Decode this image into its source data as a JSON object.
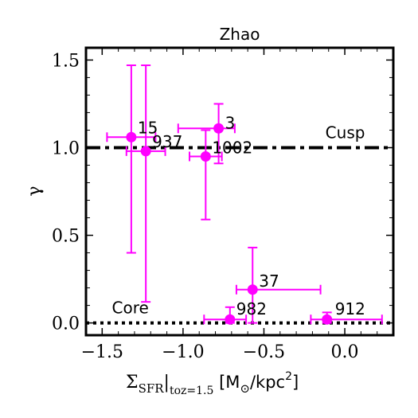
{
  "chart_data": {
    "type": "scatter",
    "title": "Zhao",
    "xlabel_main": "Σ",
    "xlabel_sub": "SFR",
    "xlabel_sub2": "|",
    "xlabel_subsub": "toz=1.5",
    "xlabel_units": " [M",
    "xlabel_sun": "⊙",
    "xlabel_units2": "/kpc",
    "xlabel_sup": "2",
    "xlabel_end": "]",
    "ylabel": "γ",
    "xlim": [
      -1.6,
      0.3
    ],
    "ylim": [
      -0.07,
      1.57
    ],
    "xticks": [
      -1.5,
      -1.0,
      -0.5,
      0.0
    ],
    "xtick_labels": [
      "−1.5",
      "−1.0",
      "−0.5",
      "0.0"
    ],
    "yticks": [
      0.0,
      0.5,
      1.0,
      1.5
    ],
    "ytick_labels": [
      "0.0",
      "0.5",
      "1.0",
      "1.5"
    ],
    "marker_color": "#ff00ff",
    "points": [
      {
        "label": "15",
        "x": -1.32,
        "y": 1.06,
        "xerr": [
          0.15,
          0.15
        ],
        "yerr": [
          0.66,
          0.41
        ]
      },
      {
        "label": "937",
        "x": -1.23,
        "y": 0.98,
        "xerr": [
          0.12,
          0.12
        ],
        "yerr": [
          0.86,
          0.49
        ]
      },
      {
        "label": "1002",
        "x": -0.86,
        "y": 0.95,
        "xerr": [
          0.1,
          0.1
        ],
        "yerr": [
          0.36,
          0.15
        ]
      },
      {
        "label": "3",
        "x": -0.78,
        "y": 1.11,
        "xerr": [
          0.25,
          0.1
        ],
        "yerr": [
          0.2,
          0.14
        ]
      },
      {
        "label": "37",
        "x": -0.57,
        "y": 0.19,
        "xerr": [
          0.1,
          0.42
        ],
        "yerr": [
          0.19,
          0.24
        ]
      },
      {
        "label": "982",
        "x": -0.71,
        "y": 0.02,
        "xerr": [
          0.16,
          0.1
        ],
        "yerr": [
          0.02,
          0.07
        ]
      },
      {
        "label": "912",
        "x": -0.11,
        "y": 0.02,
        "xerr": [
          0.1,
          0.34
        ],
        "yerr": [
          0.02,
          0.04
        ]
      }
    ],
    "reference_lines": [
      {
        "name": "Cusp",
        "y": 1.0,
        "style": "dashdot"
      },
      {
        "name": "Core",
        "y": 0.0,
        "style": "dotted"
      }
    ],
    "grid": false
  }
}
